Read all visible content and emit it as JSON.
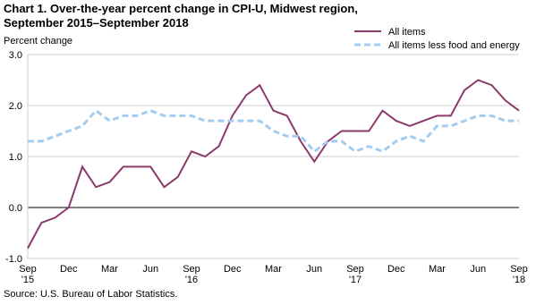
{
  "chart_data": {
    "type": "line",
    "title": [
      "Chart 1. Over-the-year percent change in CPI-U, Midwest region,",
      "September 2015–September 2018"
    ],
    "y_label": "Percent change",
    "source": "Source: U.S. Bureau of Labor Statistics.",
    "categories": [
      "Sep '15",
      null,
      null,
      "Dec",
      null,
      null,
      "Mar",
      null,
      null,
      "Jun",
      null,
      null,
      "Sep '16",
      null,
      null,
      "Dec",
      null,
      null,
      "Mar",
      null,
      null,
      "Jun",
      null,
      null,
      "Sep '17",
      null,
      null,
      "Dec",
      null,
      null,
      "Mar",
      null,
      null,
      "Jun",
      null,
      null,
      "Sep '18"
    ],
    "series": [
      {
        "name": "All items",
        "color": "#8b3a6b",
        "dashed": false,
        "values": [
          -0.8,
          -0.3,
          -0.2,
          0.0,
          0.8,
          0.4,
          0.5,
          0.8,
          0.8,
          0.8,
          0.4,
          0.6,
          1.1,
          1.0,
          1.2,
          1.8,
          2.2,
          2.4,
          1.9,
          1.8,
          1.3,
          0.9,
          1.3,
          1.5,
          1.5,
          1.5,
          1.9,
          1.7,
          1.6,
          1.7,
          1.8,
          1.8,
          2.3,
          2.5,
          2.4,
          2.1,
          1.9
        ]
      },
      {
        "name": "All items less food and energy",
        "color": "#a3cdf0",
        "dashed": true,
        "values": [
          1.3,
          1.3,
          1.4,
          1.5,
          1.6,
          1.9,
          1.7,
          1.8,
          1.8,
          1.9,
          1.8,
          1.8,
          1.8,
          1.7,
          1.7,
          1.7,
          1.7,
          1.7,
          1.5,
          1.4,
          1.4,
          1.1,
          1.3,
          1.3,
          1.1,
          1.2,
          1.1,
          1.3,
          1.4,
          1.3,
          1.6,
          1.6,
          1.7,
          1.8,
          1.8,
          1.7,
          1.7
        ]
      }
    ],
    "ylim": [
      -1.0,
      3.0
    ],
    "yticks": [
      {
        "value": 3.0,
        "label": "3.0"
      },
      {
        "value": 2.0,
        "label": "2.0"
      },
      {
        "value": 1.0,
        "label": "1.0"
      },
      {
        "value": 0.0,
        "label": "0.0"
      },
      {
        "value": -1.0,
        "label": "-1.0"
      }
    ],
    "grid": true
  }
}
